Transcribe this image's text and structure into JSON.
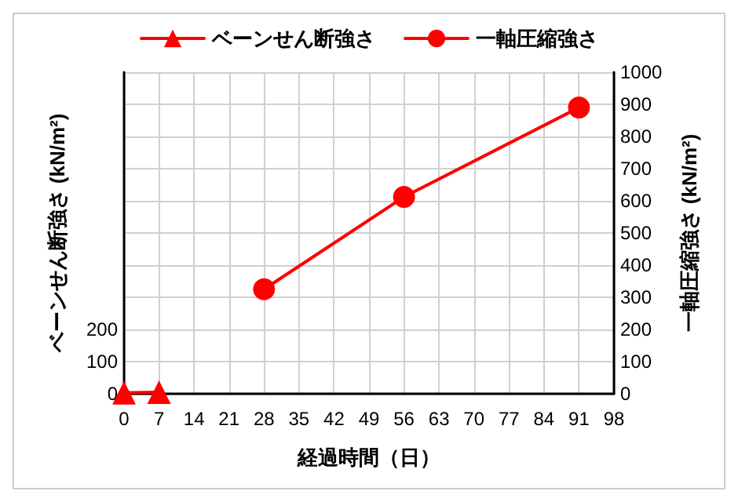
{
  "chart_data": {
    "type": "line",
    "xlabel": "経過時間（日）",
    "ylabel": "ベーンせん断強さ (kN/m²)",
    "y2label": "一軸圧縮強さ (kN/m²)",
    "series": [
      {
        "name": "ベーンせん断強さ",
        "color": "#ff0000",
        "x": [
          0,
          7
        ],
        "values": [
          3,
          5
        ],
        "marker": "triangle"
      },
      {
        "name": "一軸圧縮強さ",
        "color": "#ff0000",
        "x": [
          28,
          56,
          91
        ],
        "values": [
          325,
          612,
          890
        ],
        "marker": "circle",
        "axis": "y2"
      }
    ],
    "xlim": [
      0,
      98
    ],
    "xticks": [
      0,
      7,
      14,
      21,
      28,
      35,
      42,
      49,
      56,
      63,
      70,
      77,
      84,
      91,
      98
    ],
    "ylim": [
      0,
      1000
    ],
    "yticks": [
      0,
      100,
      200
    ],
    "y2lim": [
      0,
      1000
    ],
    "y2ticks": [
      0,
      100,
      200,
      300,
      400,
      500,
      600,
      700,
      800,
      900,
      1000
    ],
    "grid": true,
    "legend": "top",
    "line_style": "solid"
  }
}
